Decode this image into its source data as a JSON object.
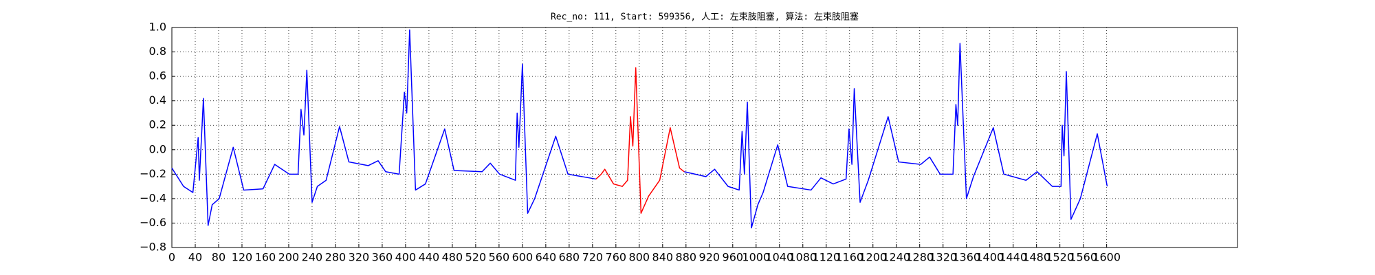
{
  "chart_data": {
    "type": "line",
    "title": "Rec_no: 111, Start: 599356, 人工: 左束肢阻塞, 算法: 左束肢阻塞",
    "x": [
      0,
      20,
      36,
      45,
      47,
      54,
      62,
      69,
      81,
      105,
      123,
      156,
      176,
      201,
      216,
      221,
      226,
      231,
      240,
      249,
      264,
      287,
      303,
      336,
      353,
      366,
      389,
      398,
      402,
      407,
      417,
      434,
      467,
      483,
      531,
      545,
      561,
      588,
      591,
      594,
      600,
      609,
      621,
      657,
      678,
      726,
      735,
      741,
      756,
      771,
      780,
      785,
      789,
      794,
      803,
      816,
      835,
      853,
      869,
      877,
      914,
      929,
      952,
      971,
      976,
      980,
      985,
      992,
      1003,
      1012,
      1037,
      1054,
      1094,
      1111,
      1132,
      1154,
      1159,
      1164,
      1168,
      1178,
      1192,
      1226,
      1244,
      1282,
      1297,
      1315,
      1337,
      1342,
      1345,
      1349,
      1360,
      1372,
      1406,
      1424,
      1462,
      1481,
      1507,
      1522,
      1524,
      1527,
      1531,
      1539,
      1555,
      1584,
      1601
    ],
    "series": [
      {
        "color": "#0000ff",
        "values": [
          -0.15,
          -0.3,
          -0.35,
          0.1,
          -0.25,
          0.42,
          -0.62,
          -0.45,
          -0.4,
          0.02,
          -0.33,
          -0.32,
          -0.12,
          -0.2,
          -0.2,
          0.33,
          0.12,
          0.65,
          -0.43,
          -0.3,
          -0.25,
          0.19,
          -0.1,
          -0.13,
          -0.09,
          -0.18,
          -0.2,
          0.47,
          0.3,
          0.98,
          -0.33,
          -0.28,
          0.17,
          -0.17,
          -0.18,
          -0.11,
          -0.2,
          -0.25,
          0.3,
          0.02,
          0.7,
          -0.52,
          -0.4,
          0.11,
          -0.2,
          -0.24,
          null,
          null,
          null,
          null,
          null,
          null,
          null,
          null,
          null,
          null,
          null,
          null,
          null,
          -0.18,
          -0.22,
          -0.16,
          -0.3,
          -0.33,
          0.15,
          -0.2,
          0.39,
          -0.64,
          -0.45,
          -0.35,
          0.04,
          -0.3,
          -0.33,
          -0.23,
          -0.28,
          -0.24,
          0.17,
          -0.12,
          0.5,
          -0.43,
          -0.25,
          0.27,
          -0.1,
          -0.12,
          -0.06,
          -0.2,
          -0.2,
          0.37,
          0.2,
          0.87,
          -0.4,
          -0.22,
          0.18,
          -0.2,
          -0.25,
          -0.18,
          -0.3,
          -0.3,
          0.2,
          -0.05,
          0.64,
          -0.57,
          -0.4,
          0.13,
          -0.3
        ]
      },
      {
        "color": "#ff0000",
        "values": [
          null,
          null,
          null,
          null,
          null,
          null,
          null,
          null,
          null,
          null,
          null,
          null,
          null,
          null,
          null,
          null,
          null,
          null,
          null,
          null,
          null,
          null,
          null,
          null,
          null,
          null,
          null,
          null,
          null,
          null,
          null,
          null,
          null,
          null,
          null,
          null,
          null,
          null,
          null,
          null,
          null,
          null,
          null,
          null,
          null,
          -0.24,
          -0.2,
          -0.16,
          -0.28,
          -0.3,
          -0.25,
          0.27,
          0.03,
          0.67,
          -0.52,
          -0.38,
          -0.25,
          0.18,
          -0.15,
          -0.18,
          null,
          null,
          null,
          null,
          null,
          null,
          null,
          null,
          null,
          null,
          null,
          null,
          null,
          null,
          null,
          null,
          null,
          null,
          null,
          null,
          null,
          null,
          null,
          null,
          null,
          null,
          null,
          null,
          null,
          null,
          null,
          null,
          null,
          null,
          null,
          null,
          null,
          null,
          null,
          null,
          null,
          null,
          null,
          null,
          null
        ]
      }
    ],
    "xlim": [
      0,
      1824
    ],
    "xticks": [
      0,
      40,
      80,
      120,
      160,
      200,
      240,
      280,
      320,
      360,
      400,
      440,
      480,
      520,
      560,
      600,
      640,
      680,
      720,
      760,
      800,
      840,
      880,
      920,
      960,
      1000,
      1040,
      1080,
      1120,
      1160,
      1200,
      1240,
      1280,
      1320,
      1360,
      1400,
      1440,
      1480,
      1520,
      1560,
      1600
    ],
    "ylim": [
      -0.8,
      1.0
    ],
    "yticks": [
      {
        "value": -0.8,
        "label": "−0.8"
      },
      {
        "value": -0.6,
        "label": "−0.6"
      },
      {
        "value": -0.4,
        "label": "−0.4"
      },
      {
        "value": -0.2,
        "label": "−0.2"
      },
      {
        "value": 0,
        "label": "0.0"
      },
      0.2,
      0.4,
      0.6,
      0.8,
      {
        "value": 1,
        "label": "1.0"
      }
    ],
    "grid": true
  }
}
